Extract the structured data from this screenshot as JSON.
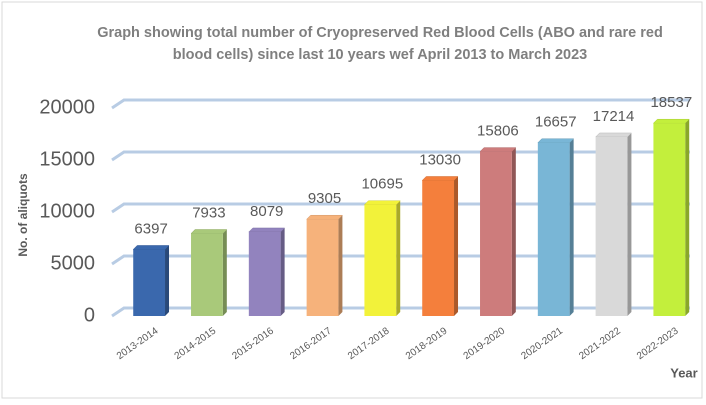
{
  "chart_data": {
    "type": "bar",
    "title": "Graph showing total number of Cryopreserved Red Blood Cells  (ABO and rare red blood cells) since last 10 years wef April 2013 to March 2023",
    "x_label": "Year",
    "y_label": "No. of aliquots",
    "categories": [
      "2013-2014",
      "2014-2015",
      "2015-2016",
      "2016-2017",
      "2017-2018",
      "2018-2019",
      "2019-2020",
      "2020-2021",
      "2021-2022",
      "2022-2023"
    ],
    "values": [
      6397,
      7933,
      8079,
      9305,
      10695,
      13030,
      15806,
      16657,
      17214,
      18537
    ],
    "colors": [
      "#3a68ad",
      "#a9c97a",
      "#9283be",
      "#f6b27b",
      "#f2f23a",
      "#f47f3c",
      "#cd7c7c",
      "#79b6d6",
      "#d9d9d9",
      "#c3ef3c"
    ],
    "ylim": [
      0,
      20000
    ],
    "yticks": [
      0,
      5000,
      10000,
      15000,
      20000
    ],
    "grid": true
  }
}
